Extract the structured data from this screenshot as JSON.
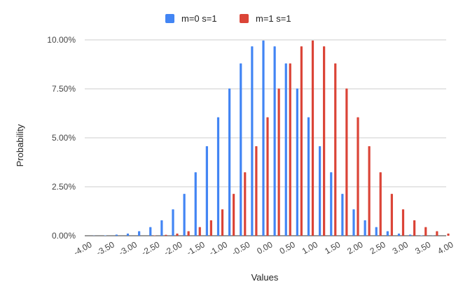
{
  "chart_data": {
    "type": "bar",
    "xlabel": "Values",
    "ylabel": "Probability",
    "legend_position": "top",
    "grid": true,
    "ylim": [
      0,
      0.1
    ],
    "y_ticks": [
      "0.00%",
      "2.50%",
      "5.00%",
      "7.50%",
      "10.00%"
    ],
    "y_tick_values": [
      0,
      0.025,
      0.05,
      0.075,
      0.1
    ],
    "x_ticks": [
      "-4.00",
      "-3.50",
      "-3.00",
      "-2.50",
      "-2.00",
      "-1.50",
      "-1.00",
      "-0.50",
      "0.00",
      "0.50",
      "1.00",
      "1.50",
      "2.00",
      "2.50",
      "3.00",
      "3.50",
      "4.00"
    ],
    "x": [
      -4.0,
      -3.75,
      -3.5,
      -3.25,
      -3.0,
      -2.75,
      -2.5,
      -2.25,
      -2.0,
      -1.75,
      -1.5,
      -1.25,
      -1.0,
      -0.75,
      -0.5,
      -0.25,
      0.0,
      0.25,
      0.5,
      0.75,
      1.0,
      1.25,
      1.5,
      1.75,
      2.0,
      2.25,
      2.5,
      2.75,
      3.0,
      3.25,
      3.5,
      3.75,
      4.0
    ],
    "series": [
      {
        "name": "m=0  s=1",
        "color": "#4285f4",
        "values": [
          0.0,
          0.0001,
          0.0002,
          0.0006,
          0.0011,
          0.0023,
          0.0044,
          0.0079,
          0.0135,
          0.0214,
          0.0324,
          0.0457,
          0.0605,
          0.0752,
          0.088,
          0.0967,
          0.0997,
          0.0967,
          0.088,
          0.0752,
          0.0605,
          0.0457,
          0.0324,
          0.0214,
          0.0135,
          0.0079,
          0.0044,
          0.0023,
          0.0011,
          0.0006,
          0.0002,
          0.0001,
          0.0
        ]
      },
      {
        "name": "m=1  s=1",
        "color": "#db4437",
        "values": [
          0.0,
          0.0,
          0.0,
          0.0,
          0.0,
          0.0,
          0.0002,
          0.0005,
          0.0011,
          0.0023,
          0.0044,
          0.0079,
          0.0135,
          0.0214,
          0.0324,
          0.0457,
          0.0605,
          0.0752,
          0.088,
          0.0967,
          0.0997,
          0.0967,
          0.088,
          0.0752,
          0.0605,
          0.0457,
          0.0324,
          0.0214,
          0.0135,
          0.0079,
          0.0044,
          0.0023,
          0.0011
        ]
      }
    ]
  }
}
